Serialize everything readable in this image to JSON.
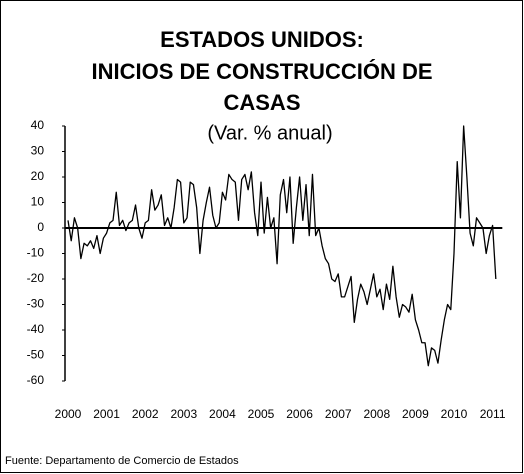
{
  "chart_data": {
    "type": "line",
    "title_lines": [
      "ESTADOS UNIDOS:",
      "INICIOS DE CONSTRUCCIÓN  DE",
      "CASAS"
    ],
    "subtitle": "(Var. % anual)",
    "source": "Fuente: Departamento de Comercio de Estados",
    "color": "#000000",
    "x_start": 2000,
    "x_step_months": 12,
    "values": [
      3,
      -5,
      4,
      0,
      -12,
      -6,
      -7,
      -5,
      -8,
      -3,
      -10,
      -4,
      -2,
      2,
      3,
      14,
      1,
      3,
      -1,
      2,
      3,
      9,
      0,
      -4,
      2,
      3,
      15,
      7,
      9,
      13,
      1,
      4,
      0,
      8,
      19,
      18,
      2,
      4,
      18,
      17,
      8,
      -10,
      3,
      10,
      16,
      5,
      0,
      2,
      14,
      11,
      21,
      19,
      18,
      3,
      19,
      21,
      15,
      22,
      6,
      -3,
      18,
      -2,
      12,
      0,
      4,
      -14,
      13,
      19,
      6,
      20,
      -6,
      8,
      20,
      3,
      17,
      -3,
      21,
      -3,
      0,
      -7,
      -12,
      -14,
      -20,
      -21,
      -18,
      -27,
      -27,
      -23,
      -19,
      -37,
      -28,
      -22,
      -25,
      -30,
      -24,
      -18,
      -27,
      -24,
      -32,
      -22,
      -28,
      -15,
      -27,
      -35,
      -30,
      -31,
      -33,
      -26,
      -36,
      -40,
      -45,
      -45,
      -54,
      -47,
      -48,
      -53,
      -44,
      -36,
      -30,
      -32,
      -10,
      26,
      4,
      40,
      20,
      -2,
      -7,
      4,
      2,
      0,
      -10,
      -3,
      1,
      -20
    ],
    "xlim": [
      2000,
      2011.2
    ],
    "xticks": [
      2000,
      2001,
      2002,
      2003,
      2004,
      2005,
      2006,
      2007,
      2008,
      2009,
      2010,
      2011
    ],
    "ylim": [
      -60,
      40
    ],
    "yticks": [
      -60,
      -50,
      -40,
      -30,
      -20,
      -10,
      0,
      10,
      20,
      30,
      40
    ]
  }
}
